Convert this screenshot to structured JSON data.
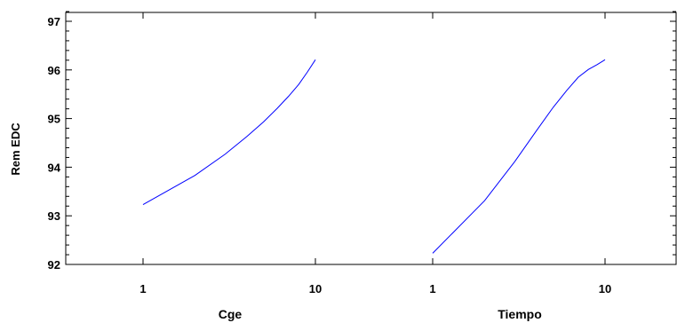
{
  "chart_data": {
    "type": "line",
    "title": "",
    "ylabel": "Rem EDC",
    "ylim": [
      91.9,
      97.2
    ],
    "yticks": [
      92,
      93,
      94,
      95,
      96,
      97
    ],
    "ytick_labels": [
      "92",
      "93",
      "94",
      "95",
      "96",
      "97"
    ],
    "grid": false,
    "legend": "none",
    "line_color": "#0000ff",
    "panels": [
      {
        "xlabel": "Cge",
        "xticks": [
          1,
          10
        ],
        "xtick_labels": [
          "1",
          "10"
        ],
        "series": [
          {
            "x": [
              1,
              2,
              3,
              4,
              5,
              6,
              7,
              8,
              9,
              10
            ],
            "y": [
              93.23,
              93.83,
              94.27,
              94.63,
              94.93,
              95.21,
              95.46,
              95.7,
              95.96,
              96.21
            ]
          }
        ]
      },
      {
        "xlabel": "Tiempo",
        "xticks": [
          1,
          10
        ],
        "xtick_labels": [
          "1",
          "10"
        ],
        "series": [
          {
            "x": [
              1,
              2,
              3,
              4,
              5,
              6,
              7,
              8,
              9,
              10
            ],
            "y": [
              92.23,
              93.31,
              94.12,
              94.75,
              95.23,
              95.58,
              95.85,
              96.01,
              96.11,
              96.21
            ]
          }
        ]
      }
    ]
  }
}
